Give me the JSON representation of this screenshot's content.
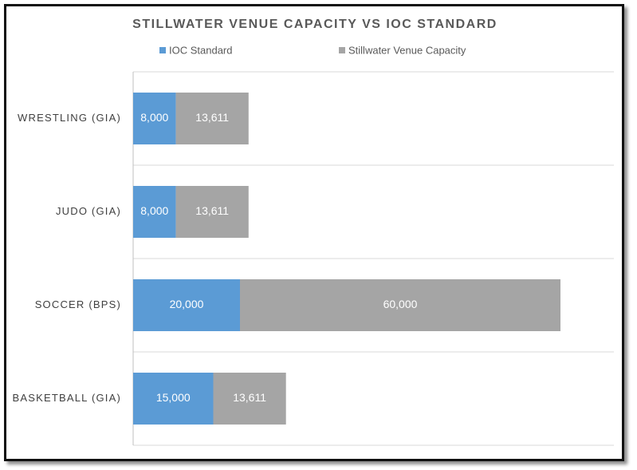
{
  "chart_data": {
    "type": "stacked-barh",
    "title": "STILLWATER VENUE CAPACITY VS IOC STANDARD",
    "categories": [
      "WRESTLING (GIA)",
      "JUDO (GIA)",
      "SOCCER (BPS)",
      "BASKETBALL (GIA)"
    ],
    "series": [
      {
        "name": "IOC Standard",
        "color": "#5b9bd5",
        "values": [
          8000,
          8000,
          20000,
          15000
        ],
        "value_labels": [
          "8,000",
          "8,000",
          "20,000",
          "15,000"
        ]
      },
      {
        "name": "Stillwater Venue Capacity",
        "color": "#a5a5a5",
        "values": [
          13611,
          13611,
          60000,
          13611
        ],
        "value_labels": [
          "13,611",
          "13,611",
          "60,000",
          "13,611"
        ]
      }
    ],
    "xlim": [
      0,
      90000
    ],
    "legend": "top"
  }
}
